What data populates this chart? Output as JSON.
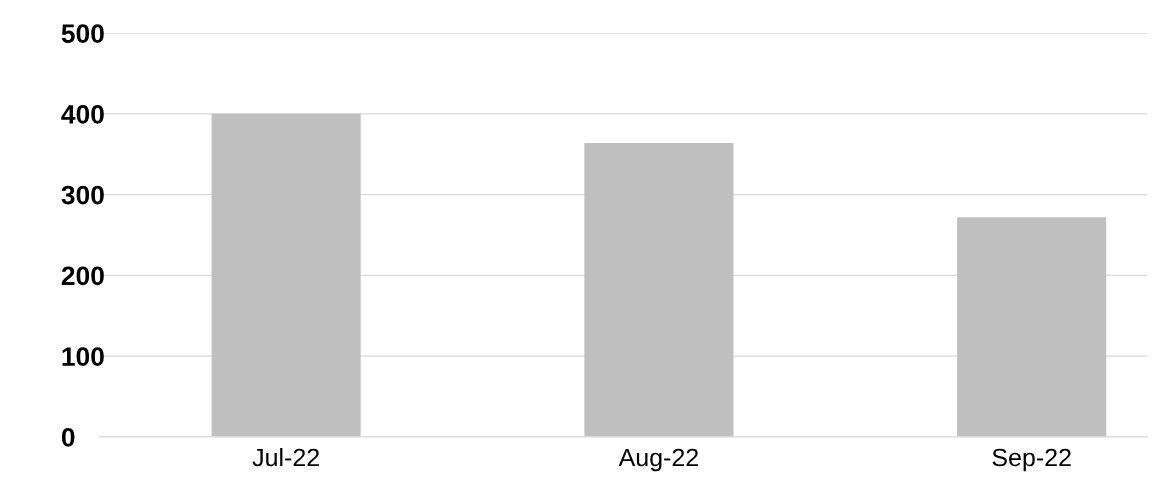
{
  "chart_data": {
    "type": "bar",
    "categories": [
      "Jul-22",
      "Aug-22",
      "Sep-22"
    ],
    "values": [
      400,
      364,
      272
    ],
    "color": "#bfbfbf",
    "ylim": [
      0,
      500
    ],
    "yticks": [
      0,
      100,
      200,
      300,
      400,
      500
    ],
    "grid": "y"
  }
}
